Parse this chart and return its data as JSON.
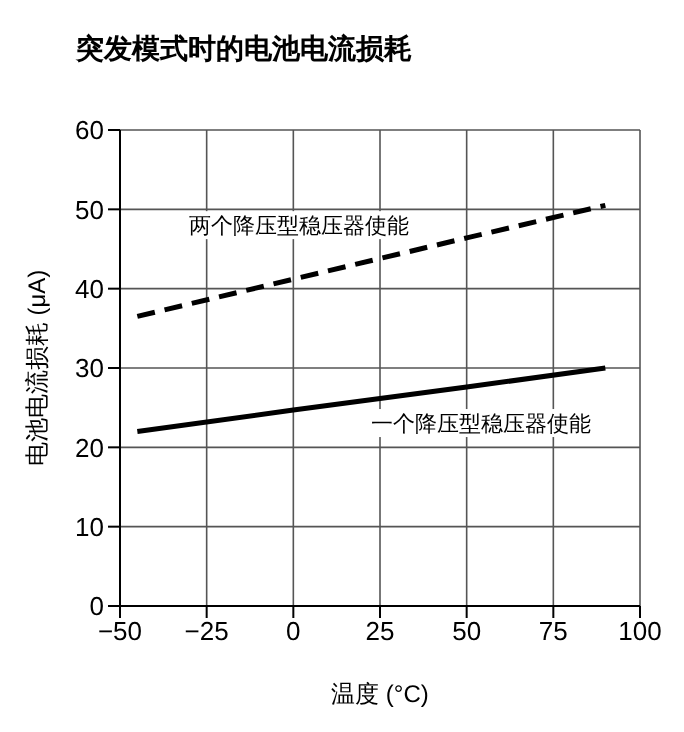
{
  "chart_data": {
    "type": "line",
    "title": "突发模式时的电池电流损耗",
    "xlabel": "温度 (°C)",
    "ylabel": "电池电流损耗 (μA)",
    "x": [
      -45,
      0,
      50,
      90
    ],
    "series": [
      {
        "name": "两个降压型稳压器使能",
        "color": "#000000",
        "line_style": "dashed",
        "values": [
          36.5,
          41.2,
          46.4,
          50.5
        ]
      },
      {
        "name": "一个降压型稳压器使能",
        "color": "#000000",
        "line_style": "solid",
        "values": [
          22,
          24.7,
          27.6,
          30
        ]
      }
    ],
    "xlim": [
      -50,
      100
    ],
    "xticks": [
      -50,
      -25,
      0,
      25,
      50,
      75,
      100
    ],
    "ylim": [
      0,
      60
    ],
    "yticks": [
      0,
      10,
      20,
      30,
      40,
      50,
      60
    ],
    "grid": true,
    "legend": false,
    "marker": "none"
  }
}
